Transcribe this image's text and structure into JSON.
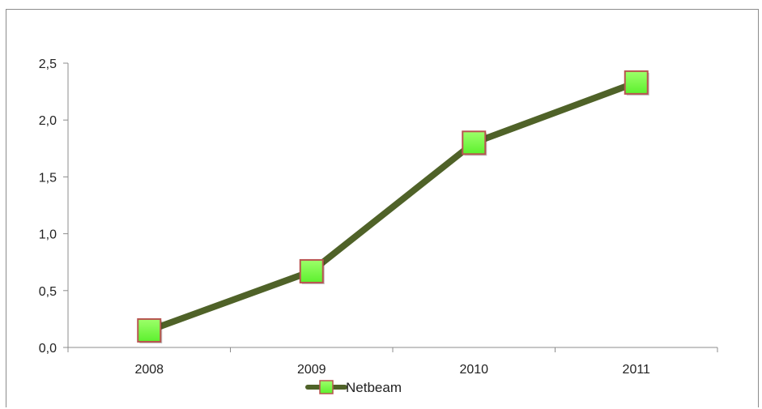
{
  "chart_data": {
    "type": "line",
    "title": "",
    "xlabel": "",
    "ylabel": "",
    "categories": [
      "2008",
      "2009",
      "2010",
      "2011"
    ],
    "series": [
      {
        "name": "Netbeam",
        "values": [
          0.15,
          0.67,
          1.8,
          2.33
        ],
        "line_color": "#4f6228",
        "marker": "square",
        "marker_fill": "#5cf02e",
        "marker_edge": "#b85450"
      }
    ],
    "ylim": [
      0,
      2.5
    ],
    "yticks": [
      "0,0",
      "0,5",
      "1,0",
      "1,5",
      "2,0",
      "2,5"
    ],
    "grid": false,
    "legend": "bottom"
  }
}
